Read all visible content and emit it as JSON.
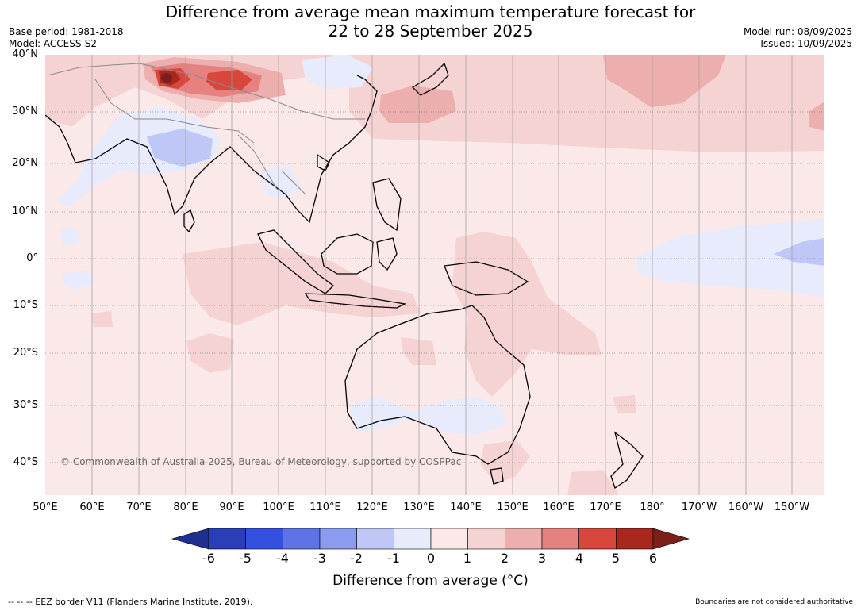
{
  "title": {
    "line1": "Difference from average mean maximum temperature forecast for",
    "line2": "22 to 28 September 2025"
  },
  "meta": {
    "base_period": "Base period: 1981-2018",
    "model": "Model: ACCESS-S2",
    "model_run": "Model run: 08/09/2025",
    "issued": "Issued: 10/09/2025"
  },
  "map": {
    "lat_labels": [
      "40°N",
      "30°N",
      "20°N",
      "10°N",
      "0°",
      "10°S",
      "20°S",
      "30°S",
      "40°S"
    ],
    "lon_labels": [
      "50°E",
      "60°E",
      "70°E",
      "80°E",
      "90°E",
      "100°E",
      "110°E",
      "120°E",
      "130°E",
      "140°E",
      "150°E",
      "160°E",
      "170°E",
      "180°",
      "170°W",
      "160°W",
      "150°W"
    ],
    "copyright": "© Commonwealth of Australia 2025, Bureau of Meteorology, supported by COSPPac",
    "anomaly_regions": [
      {
        "region": "Tibetan Plateau / Himalaya",
        "anomaly_range": "5 to 6+"
      },
      {
        "region": "Western China",
        "anomaly_range": "3 to 5"
      },
      {
        "region": "Central India",
        "anomaly_range": "-2 to -1"
      },
      {
        "region": "North Pacific near 35°N",
        "anomaly_range": "2 to 3"
      },
      {
        "region": "Equatorial central Pacific",
        "anomaly_range": "-1 to 0"
      },
      {
        "region": "Southern Australia",
        "anomaly_range": "-1 to 0"
      },
      {
        "region": "Northern Australia",
        "anomaly_range": "1 to 2"
      }
    ]
  },
  "colorbar": {
    "ticks": [
      "-6",
      "-5",
      "-4",
      "-3",
      "-2",
      "-1",
      "0",
      "1",
      "2",
      "3",
      "4",
      "5",
      "6"
    ],
    "colors": [
      "#1e2f8f",
      "#2a3fb6",
      "#3350e0",
      "#5e74e6",
      "#8b9bef",
      "#bec7f6",
      "#e7ebfb",
      "#fbe8e8",
      "#f6d3d3",
      "#edafad",
      "#e58280",
      "#d8473c",
      "#a8281f",
      "#7a1f1a"
    ],
    "label": "Difference from average (°C)"
  },
  "footer": {
    "eez": "--  --  -- EEZ border V11 (Flanders Marine Institute, 2019).",
    "disclaimer": "Boundaries are not considered authoritative"
  }
}
